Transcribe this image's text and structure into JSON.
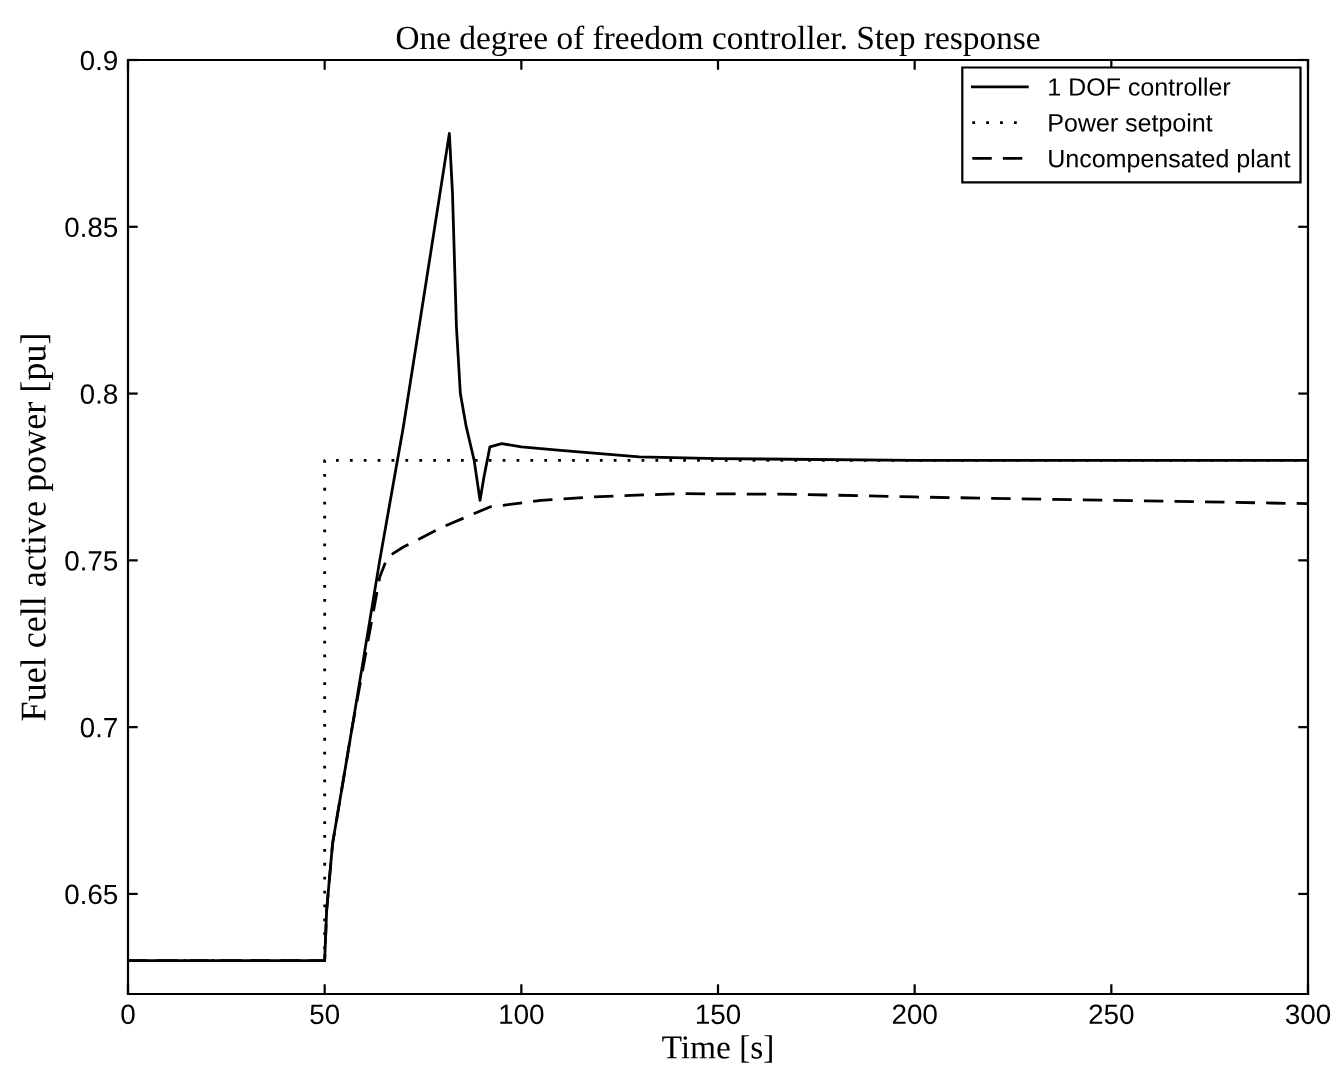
{
  "chart_data": {
    "type": "line",
    "title": "One degree of freedom controller. Step response",
    "xlabel": "Time [s]",
    "ylabel": "Fuel cell active power [pu]",
    "xlim": [
      0,
      300
    ],
    "xticks": [
      0,
      50,
      100,
      150,
      200,
      250,
      300
    ],
    "ylim": [
      0.62,
      0.9
    ],
    "yticks": [
      0.65,
      0.7,
      0.75,
      0.8,
      0.85,
      0.9
    ],
    "grid": false,
    "legend": "top right",
    "series": [
      {
        "name": "1 DOF controller",
        "color": "#000000",
        "line_style": "solid",
        "x": [
          0,
          50,
          50.5,
          52,
          57,
          64,
          70,
          76,
          81.7,
          82.5,
          83.5,
          84.5,
          86,
          88,
          89.5,
          90.5,
          92,
          95,
          100,
          110,
          130,
          150,
          200,
          300
        ],
        "values": [
          0.63,
          0.63,
          0.645,
          0.665,
          0.7,
          0.75,
          0.79,
          0.835,
          0.878,
          0.86,
          0.82,
          0.8,
          0.79,
          0.78,
          0.768,
          0.775,
          0.784,
          0.785,
          0.784,
          0.783,
          0.781,
          0.7805,
          0.78,
          0.78
        ]
      },
      {
        "name": "Power setpoint",
        "color": "#000000",
        "line_style": "dotted",
        "x": [
          0,
          50,
          50,
          300
        ],
        "values": [
          0.63,
          0.63,
          0.78,
          0.78
        ]
      },
      {
        "name": "Uncompensated plant",
        "color": "#000000",
        "line_style": "dashed",
        "x": [
          0,
          50,
          50.5,
          52,
          57,
          64,
          66,
          70,
          80,
          92,
          105,
          118,
          140,
          170,
          200,
          250,
          300
        ],
        "values": [
          0.63,
          0.63,
          0.645,
          0.665,
          0.7,
          0.745,
          0.751,
          0.754,
          0.76,
          0.766,
          0.768,
          0.769,
          0.77,
          0.7698,
          0.769,
          0.768,
          0.767
        ]
      }
    ]
  }
}
